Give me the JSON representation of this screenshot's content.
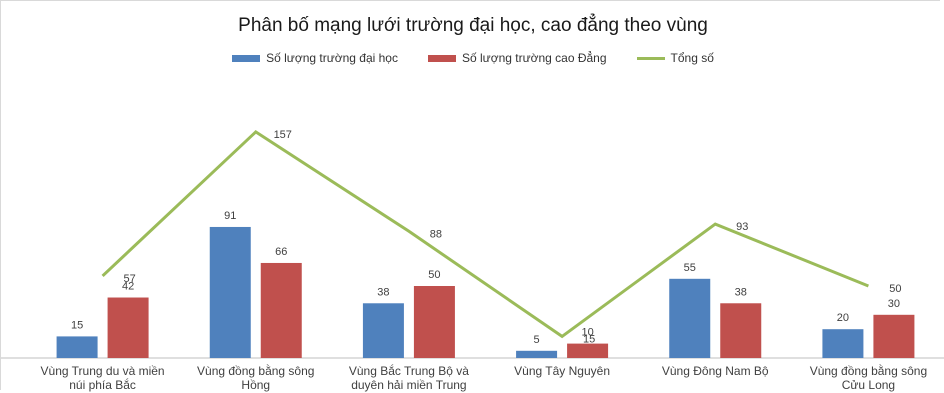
{
  "chart_data": {
    "type": "bar",
    "title": "Phân bố mạng lưới trường đại học, cao đẳng theo vùng",
    "categories": [
      [
        "Vùng Trung du và miền",
        "núi phía Bắc"
      ],
      [
        "Vùng đồng bằng sông",
        "Hồng"
      ],
      [
        "Vùng Bắc Trung Bộ và",
        "duyên hải miền Trung"
      ],
      [
        "Vùng Tây Nguyên"
      ],
      [
        "Vùng Đông Nam Bộ"
      ],
      [
        "Vùng đồng bằng sông",
        "Cửu Long"
      ]
    ],
    "series": [
      {
        "name": "Số lượng trường đại học",
        "kind": "bar",
        "color": "#4f81bd",
        "values": [
          15,
          91,
          38,
          5,
          55,
          20
        ]
      },
      {
        "name": "Số lượng trường cao Đẳng",
        "kind": "bar",
        "color": "#c0504d",
        "values": [
          42,
          66,
          50,
          10,
          38,
          30
        ]
      },
      {
        "name": "Tổng số",
        "kind": "line",
        "color": "#9bbb59",
        "values": [
          57,
          157,
          88,
          15,
          93,
          50
        ]
      }
    ],
    "ylim": [
      0,
      175
    ],
    "legend_position": "top",
    "grid": false
  }
}
